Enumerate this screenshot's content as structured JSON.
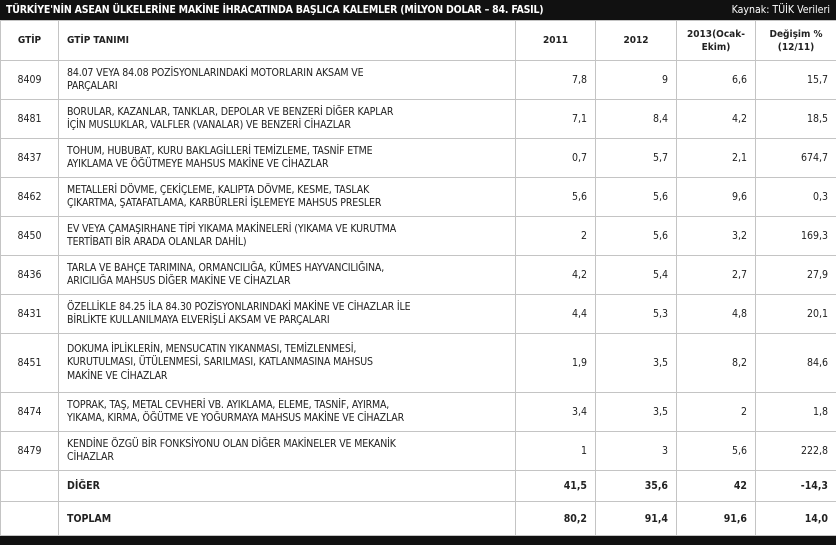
{
  "header": {
    "title": "TÜRKİYE'NİN ASEAN ÜLKELERİNE MAKİNE İHRACATINDA BAŞLICA KALEMLER (MİLYON DOLAR – 84. FASIL)",
    "source": "Kaynak: TÜİK Verileri"
  },
  "table": {
    "columns": [
      "GTİP",
      "GTİP TANIMI",
      "2011",
      "2012",
      "2013(Ocak-Ekim)",
      "Değişim % (12/11)"
    ],
    "rows": [
      {
        "code": "8409",
        "description": [
          "84.07 VEYA 84.08 POZİSYONLARINDAKİ MOTORLARIN AKSAM VE",
          "PARÇALARI"
        ],
        "v2011": "7,8",
        "v2012": "9",
        "v2013": "6,6",
        "change": "15,7"
      },
      {
        "code": "8481",
        "description": [
          "BORULAR, KAZANLAR, TANKLAR, DEPOLAR VE BENZERİ DİĞER KAPLAR",
          "İÇİN MUSLUKLAR, VALFLER (VANALAR) VE BENZERİ CİHAZLAR"
        ],
        "v2011": "7,1",
        "v2012": "8,4",
        "v2013": "4,2",
        "change": "18,5"
      },
      {
        "code": "8437",
        "description": [
          "TOHUM, HUBUBAT, KURU BAKLAGİLLERİ TEMİZLEME, TASNİF ETME",
          "AYIKLAMA VE ÖĞÜTMEYE MAHSUS MAKİNE VE CİHAZLAR"
        ],
        "v2011": "0,7",
        "v2012": "5,7",
        "v2013": "2,1",
        "change": "674,7"
      },
      {
        "code": "8462",
        "description": [
          "METALLERİ DÖVME, ÇEKİÇLEME, KALIPTA DÖVME, KESME, TASLAK",
          "ÇIKARTMA, ŞATAFATLAMA, KARBÜRLERİ İŞLEMEYE MAHSUS PRESLER"
        ],
        "v2011": "5,6",
        "v2012": "5,6",
        "v2013": "9,6",
        "change": "0,3"
      },
      {
        "code": "8450",
        "description": [
          "EV VEYA ÇAMAŞIRHANE TİPİ YIKAMA MAKİNELERİ (YIKAMA VE KURUTMA",
          "TERTİBATI BİR ARADA OLANLAR DAHİL)"
        ],
        "v2011": "2",
        "v2012": "5,6",
        "v2013": "3,2",
        "change": "169,3"
      },
      {
        "code": "8436",
        "description": [
          "TARLA VE BAHÇE TARIMINA, ORMANCILIĞA, KÜMES HAYVANCILIĞINA,",
          "ARICILIĞA MAHSUS DİĞER MAKİNE VE CİHAZLAR"
        ],
        "v2011": "4,2",
        "v2012": "5,4",
        "v2013": "2,7",
        "change": "27,9"
      },
      {
        "code": "8431",
        "description": [
          "ÖZELLİKLE 84.25 İLA 84.30 POZİSYONLARINDAKİ MAKİNE VE CİHAZLAR İLE",
          "BİRLİKTE KULLANILMAYA ELVERİŞLİ AKSAM VE PARÇALARI"
        ],
        "v2011": "4,4",
        "v2012": "5,3",
        "v2013": "4,8",
        "change": "20,1"
      },
      {
        "code": "8451",
        "description": [
          "DOKUMA İPLİKLERİN, MENSUCATIN YIKANMASI, TEMİZLENMESİ,",
          "KURUTULMASI, ÜTÜLENMESİ, SARILMASI, KATLANMASINA MAHSUS",
          "MAKİNE VE CİHAZLAR"
        ],
        "v2011": "1,9",
        "v2012": "3,5",
        "v2013": "8,2",
        "change": "84,6"
      },
      {
        "code": "8474",
        "description": [
          "TOPRAK, TAŞ, METAL CEVHERİ VB. AYIKLAMA, ELEME, TASNİF, AYIRMA,",
          "YIKAMA, KIRMA, ÖĞÜTME VE YOĞURMAYA MAHSUS MAKİNE VE CİHAZLAR"
        ],
        "v2011": "3,4",
        "v2012": "3,5",
        "v2013": "2",
        "change": "1,8"
      },
      {
        "code": "8479",
        "description": [
          "KENDİNE ÖZGÜ BİR FONKSİYONU OLAN DİĞER MAKİNELER VE MEKANİK",
          "CİHAZLAR"
        ],
        "v2011": "1",
        "v2012": "3",
        "v2013": "5,6",
        "change": "222,8"
      },
      {
        "label": "DİĞER",
        "v2011": "41,5",
        "v2012": "35,6",
        "v2013": "42",
        "change": "-14,3"
      },
      {
        "label": "TOPLAM",
        "v2011": "80,2",
        "v2012": "91,4",
        "v2013": "91,6",
        "change": "14,0"
      }
    ]
  }
}
